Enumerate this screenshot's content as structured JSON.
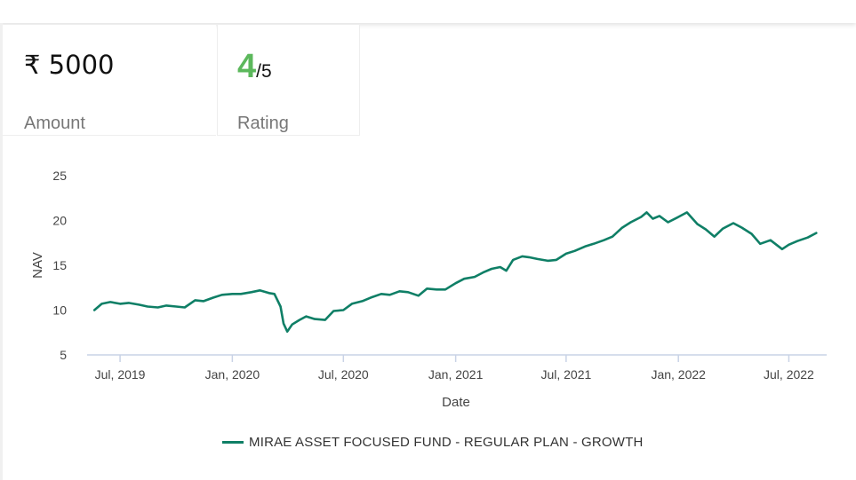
{
  "stats": {
    "amount": {
      "value": "₹ 5000",
      "label": "Amount"
    },
    "rating": {
      "value": "4",
      "scale": "/5",
      "label": "Rating"
    }
  },
  "colors": {
    "series_line": "#0f7f66",
    "rating_accent": "#5cb85c",
    "axis": "#c9d3e6"
  },
  "chart_data": {
    "type": "line",
    "xlabel": "Date",
    "ylabel": "NAV",
    "ylim": [
      5,
      25
    ],
    "yticks": [
      5,
      10,
      15,
      20,
      25
    ],
    "xlim": [
      "2019-05-08",
      "2022-09-01"
    ],
    "xticks": [
      {
        "date": "2019-07-01",
        "label": "Jul, 2019"
      },
      {
        "date": "2020-01-01",
        "label": "Jan, 2020"
      },
      {
        "date": "2020-07-01",
        "label": "Jul, 2020"
      },
      {
        "date": "2021-01-01",
        "label": "Jan, 2021"
      },
      {
        "date": "2021-07-01",
        "label": "Jul, 2021"
      },
      {
        "date": "2022-01-01",
        "label": "Jan, 2022"
      },
      {
        "date": "2022-07-01",
        "label": "Jul, 2022"
      }
    ],
    "grid": false,
    "legend_position": "bottom",
    "series": [
      {
        "name": "MIRAE ASSET FOCUSED FUND - REGULAR PLAN - GROWTH",
        "points": [
          [
            "2019-05-20",
            10.0
          ],
          [
            "2019-06-01",
            10.7
          ],
          [
            "2019-06-15",
            10.9
          ],
          [
            "2019-07-01",
            10.7
          ],
          [
            "2019-07-15",
            10.8
          ],
          [
            "2019-08-01",
            10.6
          ],
          [
            "2019-08-15",
            10.4
          ],
          [
            "2019-09-01",
            10.3
          ],
          [
            "2019-09-15",
            10.5
          ],
          [
            "2019-10-01",
            10.4
          ],
          [
            "2019-10-15",
            10.3
          ],
          [
            "2019-11-01",
            11.1
          ],
          [
            "2019-11-15",
            11.0
          ],
          [
            "2019-12-01",
            11.4
          ],
          [
            "2019-12-15",
            11.7
          ],
          [
            "2020-01-01",
            11.8
          ],
          [
            "2020-01-15",
            11.8
          ],
          [
            "2020-02-01",
            12.0
          ],
          [
            "2020-02-15",
            12.2
          ],
          [
            "2020-03-01",
            11.9
          ],
          [
            "2020-03-10",
            11.8
          ],
          [
            "2020-03-20",
            10.4
          ],
          [
            "2020-03-25",
            8.5
          ],
          [
            "2020-03-31",
            7.6
          ],
          [
            "2020-04-08",
            8.4
          ],
          [
            "2020-04-20",
            8.9
          ],
          [
            "2020-05-01",
            9.3
          ],
          [
            "2020-05-15",
            9.0
          ],
          [
            "2020-06-01",
            8.9
          ],
          [
            "2020-06-15",
            9.9
          ],
          [
            "2020-07-01",
            10.0
          ],
          [
            "2020-07-15",
            10.7
          ],
          [
            "2020-08-01",
            11.0
          ],
          [
            "2020-08-15",
            11.4
          ],
          [
            "2020-09-01",
            11.8
          ],
          [
            "2020-09-15",
            11.7
          ],
          [
            "2020-10-01",
            12.1
          ],
          [
            "2020-10-15",
            12.0
          ],
          [
            "2020-11-01",
            11.6
          ],
          [
            "2020-11-15",
            12.4
          ],
          [
            "2020-12-01",
            12.3
          ],
          [
            "2020-12-15",
            12.3
          ],
          [
            "2021-01-01",
            13.0
          ],
          [
            "2021-01-15",
            13.5
          ],
          [
            "2021-02-01",
            13.7
          ],
          [
            "2021-02-15",
            14.2
          ],
          [
            "2021-03-01",
            14.6
          ],
          [
            "2021-03-15",
            14.8
          ],
          [
            "2021-03-25",
            14.4
          ],
          [
            "2021-04-05",
            15.6
          ],
          [
            "2021-04-20",
            16.0
          ],
          [
            "2021-05-01",
            15.9
          ],
          [
            "2021-05-15",
            15.7
          ],
          [
            "2021-06-01",
            15.5
          ],
          [
            "2021-06-15",
            15.6
          ],
          [
            "2021-07-01",
            16.3
          ],
          [
            "2021-07-15",
            16.6
          ],
          [
            "2021-08-01",
            17.1
          ],
          [
            "2021-08-15",
            17.4
          ],
          [
            "2021-09-01",
            17.8
          ],
          [
            "2021-09-15",
            18.2
          ],
          [
            "2021-10-01",
            19.2
          ],
          [
            "2021-10-15",
            19.8
          ],
          [
            "2021-11-01",
            20.4
          ],
          [
            "2021-11-10",
            20.9
          ],
          [
            "2021-11-20",
            20.2
          ],
          [
            "2021-12-01",
            20.5
          ],
          [
            "2021-12-15",
            19.8
          ],
          [
            "2022-01-01",
            20.4
          ],
          [
            "2022-01-15",
            20.9
          ],
          [
            "2022-02-01",
            19.6
          ],
          [
            "2022-02-15",
            19.0
          ],
          [
            "2022-03-01",
            18.2
          ],
          [
            "2022-03-15",
            19.1
          ],
          [
            "2022-04-01",
            19.7
          ],
          [
            "2022-04-15",
            19.2
          ],
          [
            "2022-05-01",
            18.5
          ],
          [
            "2022-05-15",
            17.4
          ],
          [
            "2022-06-01",
            17.8
          ],
          [
            "2022-06-20",
            16.8
          ],
          [
            "2022-07-01",
            17.3
          ],
          [
            "2022-07-15",
            17.7
          ],
          [
            "2022-08-01",
            18.1
          ],
          [
            "2022-08-15",
            18.6
          ]
        ]
      }
    ]
  }
}
